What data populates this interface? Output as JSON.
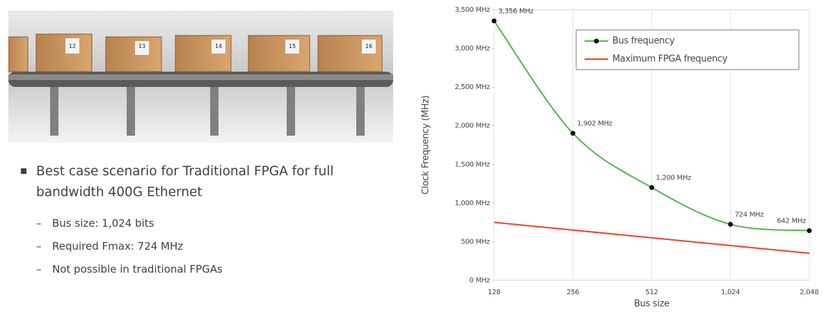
{
  "image": {
    "box_labels": [
      "12",
      "13",
      "14",
      "15",
      "16"
    ]
  },
  "bullets": {
    "main": "Best case scenario for Traditional FPGA for full bandwidth 400G Ethernet",
    "sub": [
      "Bus size: 1,024 bits",
      "Required Fmax: 724 MHz",
      "Not possible in traditional FPGAs"
    ]
  },
  "chart_data": {
    "type": "line",
    "x_label": "Bus size",
    "y_label": "Clock Frequency (MHz)",
    "categories": [
      "128",
      "256",
      "512",
      "1,024",
      "2,048"
    ],
    "series": [
      {
        "name": "Bus frequency",
        "color": "#4cbb47",
        "values": [
          3356,
          1902,
          1200,
          724,
          642
        ],
        "markers": true,
        "value_labels": [
          "3,356 MHz",
          "1,902 MHz",
          "1,200 MHz",
          "724 MHz",
          "642 MHz"
        ]
      },
      {
        "name": "Maximum FPGA frequency",
        "color": "#ff3b1f",
        "values": [
          750,
          650,
          550,
          450,
          350
        ],
        "markers": false
      }
    ],
    "ylim": [
      0,
      3500
    ],
    "yticks": [
      {
        "value": 0,
        "label": "0 MHz"
      },
      {
        "value": 500,
        "label": "500 MHz"
      },
      {
        "value": 1000,
        "label": "1,000 MHz"
      },
      {
        "value": 1500,
        "label": "1,500 MHz"
      },
      {
        "value": 2000,
        "label": "2,000 MHz"
      },
      {
        "value": 2500,
        "label": "2,500 MHz"
      },
      {
        "value": 3000,
        "label": "3,000 MHz"
      },
      {
        "value": 3500,
        "label": "3,500 MHz"
      }
    ],
    "legend": "upper right"
  }
}
